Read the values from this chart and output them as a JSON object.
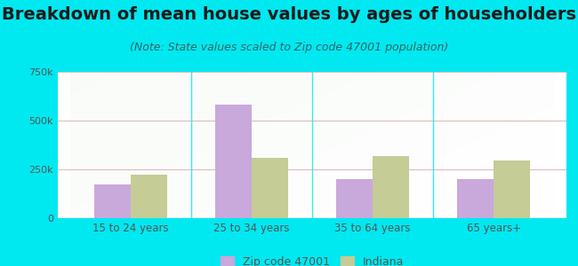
{
  "title": "Breakdown of mean house values by ages of householders",
  "subtitle": "(Note: State values scaled to Zip code 47001 population)",
  "categories": [
    "15 to 24 years",
    "25 to 34 years",
    "35 to 64 years",
    "65 years+"
  ],
  "zip_values": [
    175000,
    580000,
    200000,
    200000
  ],
  "indiana_values": [
    225000,
    310000,
    320000,
    295000
  ],
  "zip_color": "#c9a8dc",
  "indiana_color": "#c5cc96",
  "background_outer": "#00e8f0",
  "ylim": [
    0,
    750000
  ],
  "yticks": [
    0,
    250000,
    500000,
    750000
  ],
  "ytick_labels": [
    "0",
    "250k",
    "500k",
    "750k"
  ],
  "grid_color": "#d4a0a0",
  "grid_alpha": 0.7,
  "title_fontsize": 14,
  "subtitle_fontsize": 9,
  "legend_label_zip": "Zip code 47001",
  "legend_label_indiana": "Indiana",
  "bar_width": 0.3,
  "tick_color": "#555555",
  "title_color": "#1a1a1a",
  "subtitle_color": "#336666"
}
